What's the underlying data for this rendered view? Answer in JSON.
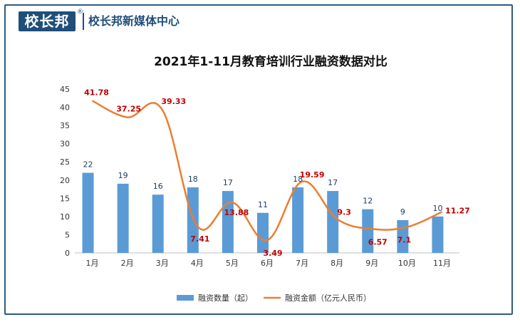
{
  "brand": {
    "logo_text": "校长邦",
    "registered_mark": "®",
    "name": "校长邦新媒体中心"
  },
  "colors": {
    "bar": "#5b9bd5",
    "line": "#ed7d31",
    "line_label": "#c00000",
    "frame": "#2d5b80"
  },
  "chart_data": {
    "type": "bar",
    "title": "2021年1-11月教育培训行业融资数据对比",
    "categories": [
      "1月",
      "2月",
      "3月",
      "4月",
      "5月",
      "6月",
      "7月",
      "8月",
      "9月",
      "10月",
      "11月"
    ],
    "ylim": [
      0,
      45
    ],
    "yticks": [
      0,
      5,
      10,
      15,
      20,
      25,
      30,
      35,
      40,
      45
    ],
    "series": [
      {
        "name": "融资数量（起）",
        "type": "bar",
        "values": [
          22,
          19,
          16,
          18,
          17,
          11,
          18,
          17,
          12,
          9,
          10
        ]
      },
      {
        "name": "融资金额（亿元人民币）",
        "type": "line",
        "values": [
          41.78,
          37.25,
          39.33,
          7.41,
          13.88,
          3.49,
          19.59,
          9.3,
          6.57,
          7.1,
          11.27
        ]
      }
    ],
    "legend_position": "bottom"
  }
}
